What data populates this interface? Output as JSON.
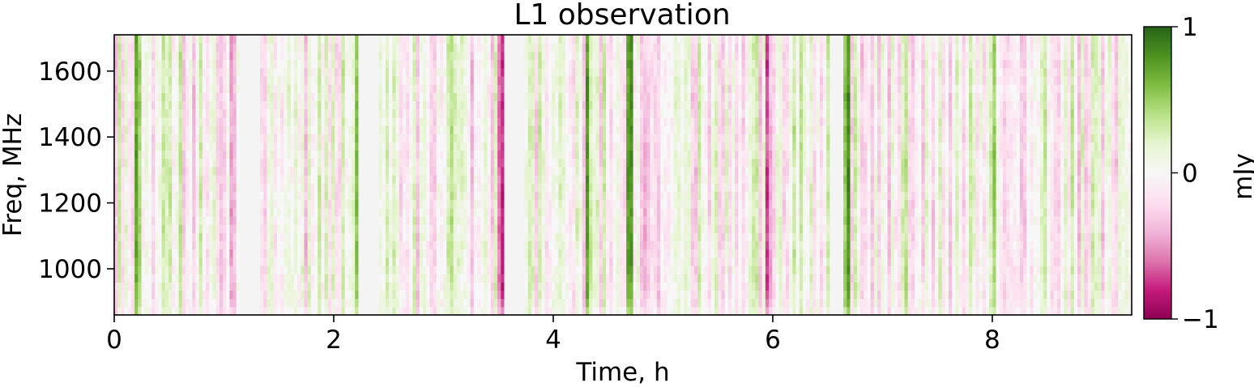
{
  "chart_data": {
    "type": "heatmap",
    "title": "L1 observation",
    "xlabel": "Time, h",
    "ylabel": "Freq, MHz",
    "xlim": [
      0,
      9.27
    ],
    "ylim": [
      860,
      1710
    ],
    "x_ticks": [
      0,
      2,
      4,
      6,
      8
    ],
    "y_ticks": [
      1000,
      1200,
      1400,
      1600
    ],
    "colorbar": {
      "label": "mJy",
      "range": [
        -1,
        1
      ],
      "ticks": [
        1,
        0,
        -1
      ],
      "tick_labels": [
        "1",
        "0",
        "−1"
      ],
      "colormap": "PiYG",
      "stops": [
        "#8e0152",
        "#c51b7d",
        "#de77ae",
        "#f1b6da",
        "#fde0ef",
        "#f7f7f7",
        "#e6f5d0",
        "#b8e186",
        "#7fbc41",
        "#4d9221",
        "#276419"
      ]
    },
    "masked_time_ranges_h": [
      [
        1.13,
        1.33
      ],
      [
        2.24,
        2.42
      ],
      [
        3.55,
        3.75
      ],
      [
        6.52,
        6.65
      ]
    ],
    "masked_color": "#f4f4f4",
    "highlight_columns": [
      {
        "t": 0.22,
        "v": 0.85
      },
      {
        "t": 1.09,
        "v": -0.6
      },
      {
        "t": 2.2,
        "v": 0.55
      },
      {
        "t": 3.53,
        "v": -0.8
      },
      {
        "t": 3.08,
        "v": 0.5
      },
      {
        "t": 4.32,
        "v": 0.75
      },
      {
        "t": 4.05,
        "v": 0.6
      },
      {
        "t": 4.7,
        "v": 0.7
      },
      {
        "t": 4.85,
        "v": -0.7
      },
      {
        "t": 6.68,
        "v": 0.8
      },
      {
        "t": 6.5,
        "v": 0.45
      },
      {
        "t": 8.02,
        "v": 0.7
      },
      {
        "t": 7.2,
        "v": 0.4
      },
      {
        "t": 5.95,
        "v": -0.5
      }
    ]
  }
}
